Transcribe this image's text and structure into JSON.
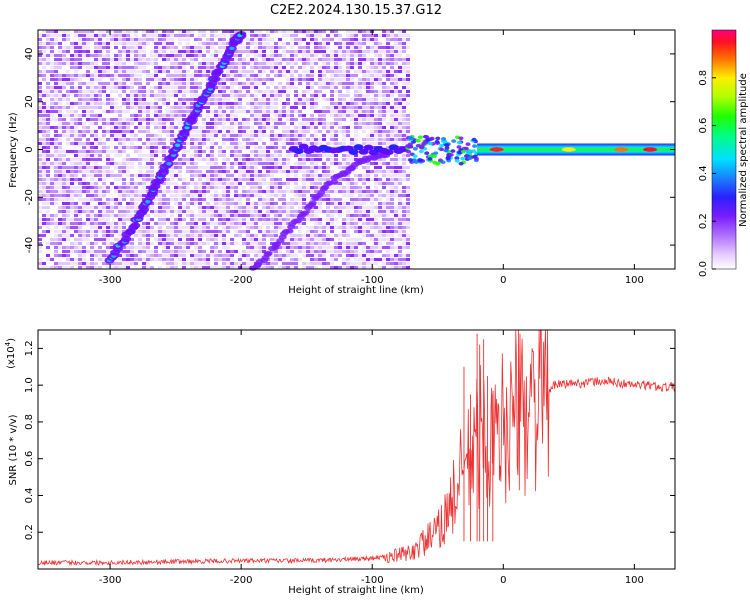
{
  "title": "C2E2.2024.130.15.37.G12",
  "chart_data": [
    {
      "type": "heatmap",
      "name": "spectrogram",
      "xlabel": "Height of straight line (km)",
      "ylabel": "Frequency (Hz)",
      "xlim": [
        -355,
        131
      ],
      "ylim": [
        -50,
        50
      ],
      "xticks": [
        -300,
        -200,
        -100,
        0,
        100
      ],
      "yticks": [
        -40,
        -20,
        0,
        20,
        40
      ],
      "data_extent_x": [
        -355,
        -73
      ],
      "colorbar": {
        "label": "Normalized spectral amplitude",
        "range": [
          0,
          1
        ],
        "ticks": [
          "0.0",
          "0.2",
          "0.4",
          "0.6",
          "0.8"
        ],
        "colormap": "rainbow"
      },
      "features": [
        {
          "feature": "rising doppler trace",
          "points": [
            [
              -300,
              -47
            ],
            [
              -280,
              -30
            ],
            [
              -265,
              -15
            ],
            [
              -250,
              0
            ],
            [
              -235,
              15
            ],
            [
              -220,
              30
            ],
            [
              -205,
              45
            ],
            [
              -200,
              48
            ]
          ]
        },
        {
          "feature": "second rising trace",
          "points": [
            [
              -190,
              -50
            ],
            [
              -170,
              -38
            ],
            [
              -150,
              -25
            ],
            [
              -130,
              -13
            ],
            [
              -110,
              -5
            ],
            [
              -90,
              -2
            ]
          ]
        },
        {
          "feature": "zero-frequency band",
          "points": [
            [
              -160,
              -2
            ],
            [
              -73,
              0
            ],
            [
              0,
              0
            ],
            [
              131,
              0
            ]
          ]
        }
      ],
      "grid": false
    },
    {
      "type": "line",
      "name": "snr",
      "xlabel": "Height of straight line (km)",
      "ylabel": "SNR (10 * v/v)",
      "y_scale_label": "(x10",
      "y_scale_exp": "4",
      "y_multiplier": 10000,
      "xlim": [
        -355,
        131
      ],
      "ylim": [
        0,
        1.3
      ],
      "xticks": [
        -300,
        -200,
        -100,
        0,
        100
      ],
      "yticks": [
        "0.2",
        "0.4",
        "0.6",
        "0.8",
        "1.0",
        "1.2"
      ],
      "color": "#ee3030",
      "series": [
        {
          "x": [
            -355,
            -300,
            -250,
            -200,
            -150,
            -110,
            -90,
            -70,
            -60,
            -50,
            -45,
            -40,
            -35,
            -30,
            -25,
            -20,
            -15,
            -10,
            -5,
            0,
            5,
            10,
            15,
            20,
            25,
            30,
            35,
            40,
            50,
            60,
            70,
            80,
            90,
            100,
            110,
            120,
            131
          ],
          "y": [
            0.03,
            0.03,
            0.035,
            0.04,
            0.04,
            0.05,
            0.06,
            0.09,
            0.15,
            0.2,
            0.28,
            0.35,
            0.45,
            0.55,
            0.6,
            0.7,
            0.75,
            0.65,
            0.7,
            0.78,
            0.82,
            0.85,
            0.87,
            0.9,
            0.94,
            0.96,
            0.98,
            1.0,
            1.01,
            1.01,
            1.02,
            1.02,
            1.01,
            1.0,
            1.0,
            0.99,
            0.99
          ]
        }
      ],
      "spikes": [
        [
          -30,
          1.1
        ],
        [
          -25,
          0.95
        ],
        [
          -20,
          1.28
        ],
        [
          -18,
          1.22
        ],
        [
          -15,
          1.25
        ],
        [
          -12,
          1.05
        ],
        [
          -8,
          0.95
        ]
      ],
      "grid": false
    }
  ]
}
